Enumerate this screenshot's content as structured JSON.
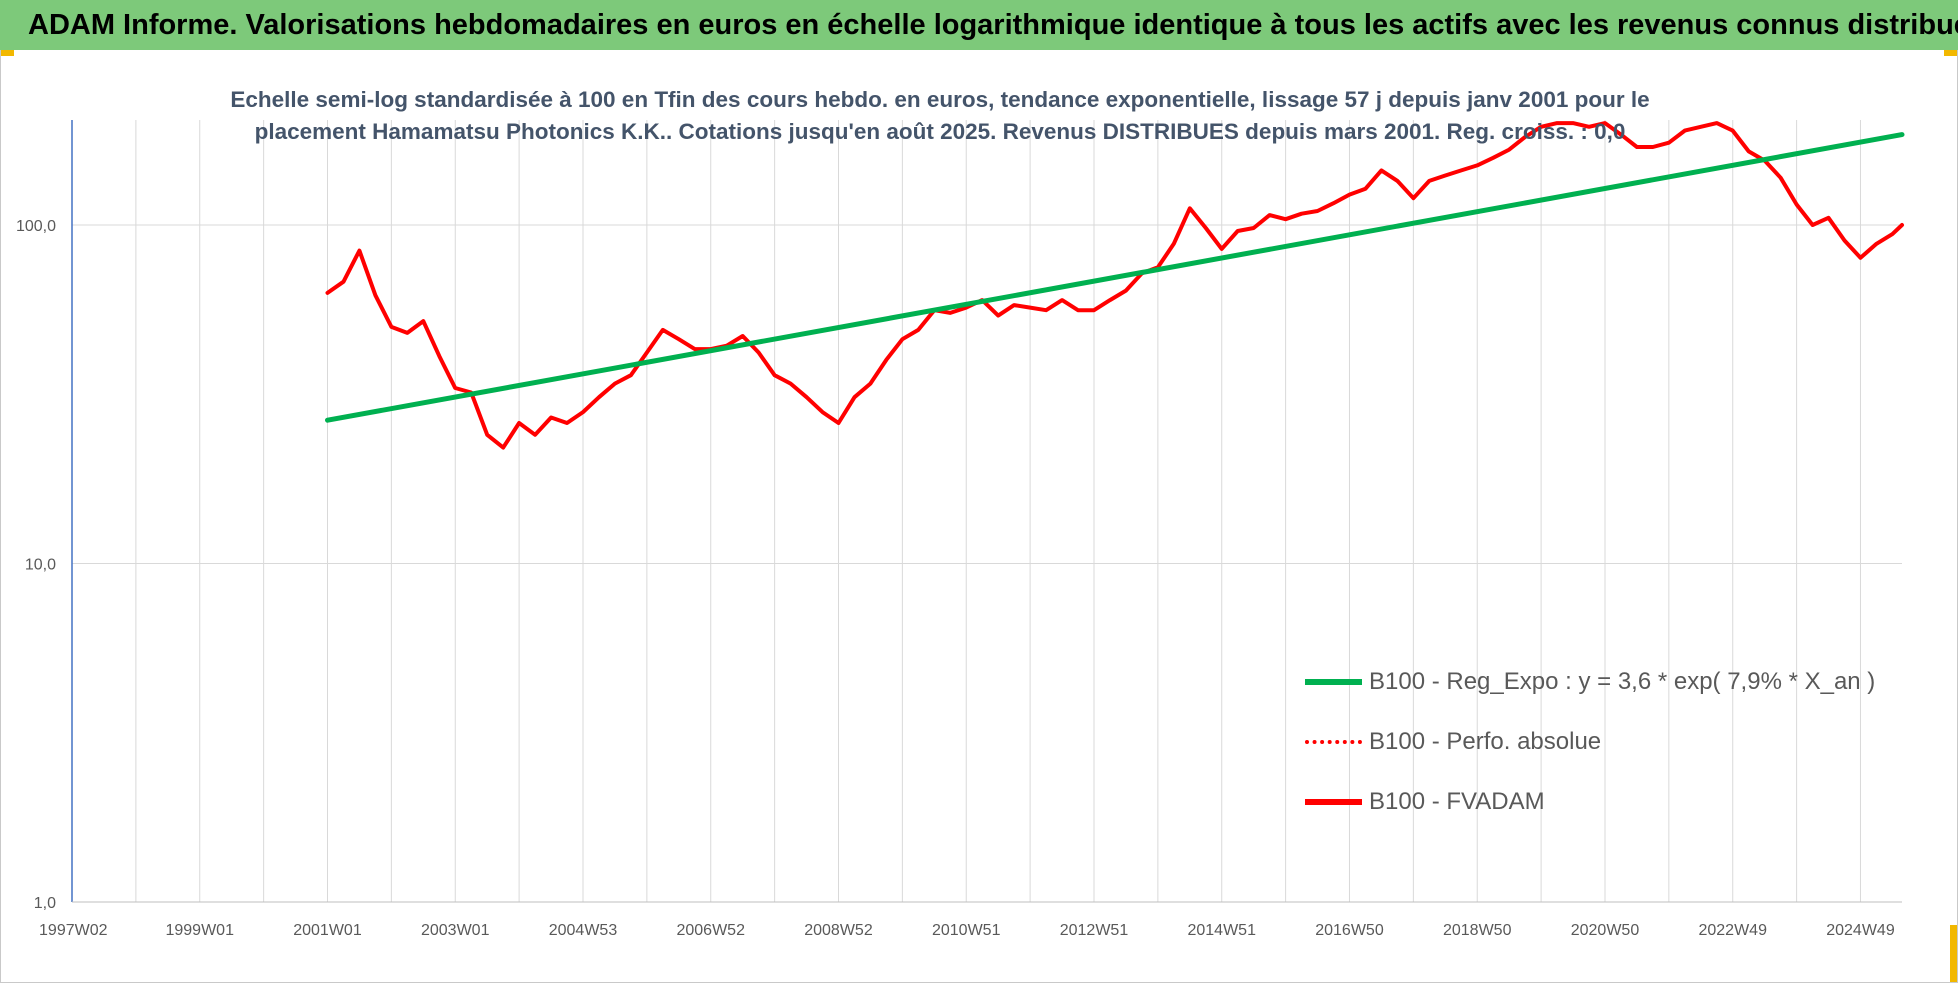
{
  "banner": {
    "title": "ADAM Informe. Valorisations hebdomadaires en euros en échelle logarithmique identique à tous les actifs avec les revenus connus distribués"
  },
  "colors": {
    "banner_bg": "#7dc97a",
    "corner_accent": "#f2b800",
    "regression": "#00b050",
    "performance": "#ff0000",
    "grid": "#d9d9d9",
    "axis": "#4472c4"
  },
  "chart_data": {
    "type": "line",
    "title": "Echelle semi-log standardisée à 100 en Tfin des cours hebdo. en euros, tendance exponentielle, lissage 57 j depuis janv 2001 pour le placement Hamamatsu Photonics K.K.. Cotations jusqu'en août 2025. Revenus DISTRIBUES depuis mars 2001. Reg. croiss. : 0,0",
    "y_scale": "log",
    "ylim": [
      1,
      200
    ],
    "y_ticks": [
      {
        "value": 1,
        "label": "1,0"
      },
      {
        "value": 10,
        "label": "10,0"
      },
      {
        "value": 100,
        "label": "100,0"
      }
    ],
    "x_range": [
      1997.0,
      2025.65
    ],
    "x_ticks": [
      {
        "value": 1997.02,
        "label": "1997W02"
      },
      {
        "value": 1999.0,
        "label": "1999W01"
      },
      {
        "value": 2001.0,
        "label": "2001W01"
      },
      {
        "value": 2003.0,
        "label": "2003W01"
      },
      {
        "value": 2005.0,
        "label": "2004W53"
      },
      {
        "value": 2007.0,
        "label": "2006W52"
      },
      {
        "value": 2009.0,
        "label": "2008W52"
      },
      {
        "value": 2011.0,
        "label": "2010W51"
      },
      {
        "value": 2013.0,
        "label": "2012W51"
      },
      {
        "value": 2015.0,
        "label": "2014W51"
      },
      {
        "value": 2017.0,
        "label": "2016W50"
      },
      {
        "value": 2019.0,
        "label": "2018W50"
      },
      {
        "value": 2021.0,
        "label": "2020W50"
      },
      {
        "value": 2023.0,
        "label": "2022W49"
      },
      {
        "value": 2025.0,
        "label": "2024W49"
      }
    ],
    "grid": true,
    "legend_position": "bottom-right",
    "series": [
      {
        "name": "B100 - Reg_Expo : y = 3,6 * exp( 7,9% *  X_an )",
        "style": "solid",
        "color": "#00b050",
        "x": [
          2001.0,
          2025.65
        ],
        "y": [
          26.5,
          185
        ]
      },
      {
        "name": "B100 - Perfo. absolue",
        "style": "dotted",
        "color": "#ff0000",
        "x": [
          2001.0,
          2001.25,
          2001.5,
          2001.75,
          2002.0,
          2002.25,
          2002.5,
          2002.75,
          2003.0,
          2003.25,
          2003.5,
          2003.75,
          2004.0,
          2004.25,
          2004.5,
          2004.75,
          2005.0,
          2005.25,
          2005.5,
          2005.75,
          2006.0,
          2006.25,
          2006.5,
          2006.75,
          2007.0,
          2007.25,
          2007.5,
          2007.75,
          2008.0,
          2008.25,
          2008.5,
          2008.75,
          2009.0,
          2009.25,
          2009.5,
          2009.75,
          2010.0,
          2010.25,
          2010.5,
          2010.75,
          2011.0,
          2011.25,
          2011.5,
          2011.75,
          2012.0,
          2012.25,
          2012.5,
          2012.75,
          2013.0,
          2013.25,
          2013.5,
          2013.75,
          2014.0,
          2014.25,
          2014.5,
          2014.75,
          2015.0,
          2015.25,
          2015.5,
          2015.75,
          2016.0,
          2016.25,
          2016.5,
          2016.75,
          2017.0,
          2017.25,
          2017.5,
          2017.75,
          2018.0,
          2018.25,
          2018.5,
          2018.75,
          2019.0,
          2019.25,
          2019.5,
          2019.75,
          2020.0,
          2020.25,
          2020.5,
          2020.75,
          2021.0,
          2021.25,
          2021.5,
          2021.75,
          2022.0,
          2022.25,
          2022.5,
          2022.75,
          2023.0,
          2023.25,
          2023.5,
          2023.75,
          2024.0,
          2024.25,
          2024.5,
          2024.75,
          2025.0,
          2025.25,
          2025.5,
          2025.65
        ],
        "y": [
          63,
          68,
          84,
          62,
          50,
          48,
          52,
          41,
          33,
          32,
          24,
          22,
          26,
          24,
          27,
          26,
          28,
          31,
          34,
          36,
          42,
          49,
          46,
          43,
          43,
          44,
          47,
          42,
          36,
          34,
          31,
          28,
          26,
          31,
          34,
          40,
          46,
          49,
          56,
          55,
          57,
          60,
          54,
          58,
          57,
          56,
          60,
          56,
          56,
          60,
          64,
          72,
          75,
          88,
          112,
          98,
          85,
          96,
          98,
          107,
          104,
          108,
          110,
          116,
          123,
          128,
          145,
          135,
          120,
          135,
          140,
          145,
          150,
          158,
          167,
          182,
          195,
          200,
          200,
          195,
          200,
          185,
          170,
          170,
          175,
          190,
          195,
          200,
          190,
          165,
          155,
          138,
          115,
          100,
          105,
          90,
          80,
          88,
          94,
          100
        ]
      },
      {
        "name": "B100 - FVADAM",
        "style": "solid",
        "color": "#ff0000",
        "x": [
          2001.0,
          2001.25,
          2001.5,
          2001.75,
          2002.0,
          2002.25,
          2002.5,
          2002.75,
          2003.0,
          2003.25,
          2003.5,
          2003.75,
          2004.0,
          2004.25,
          2004.5,
          2004.75,
          2005.0,
          2005.25,
          2005.5,
          2005.75,
          2006.0,
          2006.25,
          2006.5,
          2006.75,
          2007.0,
          2007.25,
          2007.5,
          2007.75,
          2008.0,
          2008.25,
          2008.5,
          2008.75,
          2009.0,
          2009.25,
          2009.5,
          2009.75,
          2010.0,
          2010.25,
          2010.5,
          2010.75,
          2011.0,
          2011.25,
          2011.5,
          2011.75,
          2012.0,
          2012.25,
          2012.5,
          2012.75,
          2013.0,
          2013.25,
          2013.5,
          2013.75,
          2014.0,
          2014.25,
          2014.5,
          2014.75,
          2015.0,
          2015.25,
          2015.5,
          2015.75,
          2016.0,
          2016.25,
          2016.5,
          2016.75,
          2017.0,
          2017.25,
          2017.5,
          2017.75,
          2018.0,
          2018.25,
          2018.5,
          2018.75,
          2019.0,
          2019.25,
          2019.5,
          2019.75,
          2020.0,
          2020.25,
          2020.5,
          2020.75,
          2021.0,
          2021.25,
          2021.5,
          2021.75,
          2022.0,
          2022.25,
          2022.5,
          2022.75,
          2023.0,
          2023.25,
          2023.5,
          2023.75,
          2024.0,
          2024.25,
          2024.5,
          2024.75,
          2025.0,
          2025.25,
          2025.5,
          2025.65
        ],
        "y": [
          63,
          68,
          84,
          62,
          50,
          48,
          52,
          41,
          33,
          32,
          24,
          22,
          26,
          24,
          27,
          26,
          28,
          31,
          34,
          36,
          42,
          49,
          46,
          43,
          43,
          44,
          47,
          42,
          36,
          34,
          31,
          28,
          26,
          31,
          34,
          40,
          46,
          49,
          56,
          55,
          57,
          60,
          54,
          58,
          57,
          56,
          60,
          56,
          56,
          60,
          64,
          72,
          75,
          88,
          112,
          98,
          85,
          96,
          98,
          107,
          104,
          108,
          110,
          116,
          123,
          128,
          145,
          135,
          120,
          135,
          140,
          145,
          150,
          158,
          167,
          182,
          195,
          200,
          200,
          195,
          200,
          185,
          170,
          170,
          175,
          190,
          195,
          200,
          190,
          165,
          155,
          138,
          115,
          100,
          105,
          90,
          80,
          88,
          94,
          100
        ]
      }
    ]
  }
}
